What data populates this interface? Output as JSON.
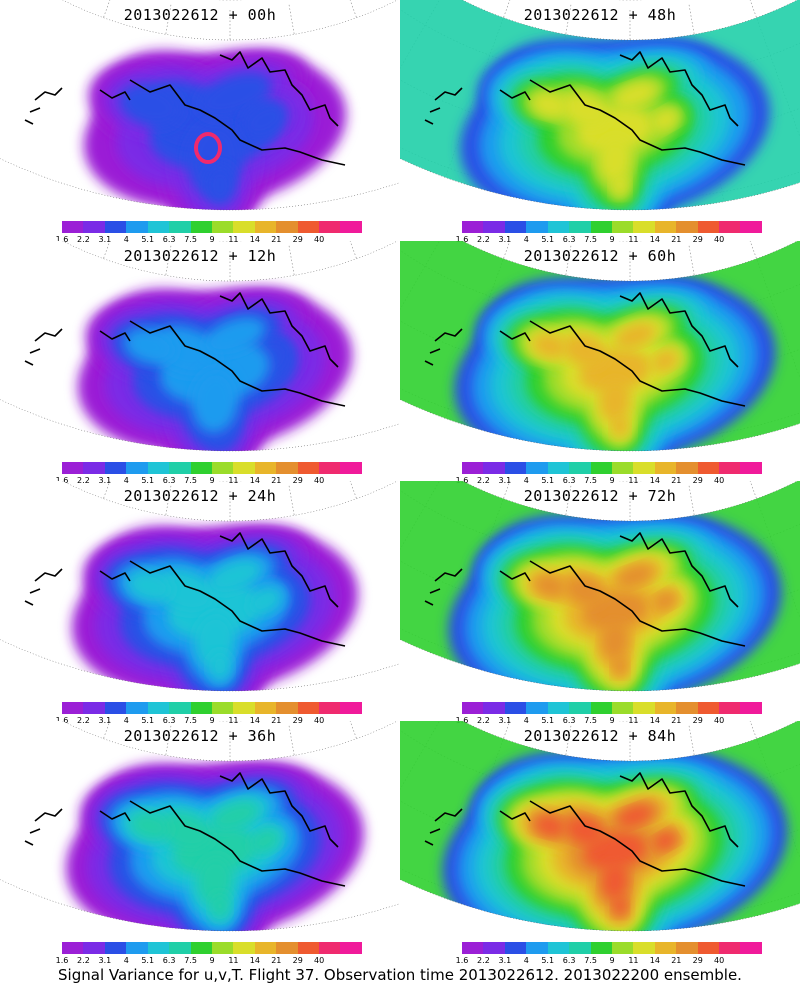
{
  "panels": [
    {
      "title": "2013022612 + 00h",
      "level": 0
    },
    {
      "title": "2013022612 + 48h",
      "level": 4
    },
    {
      "title": "2013022612 + 12h",
      "level": 1
    },
    {
      "title": "2013022612 + 60h",
      "level": 5
    },
    {
      "title": "2013022612 + 24h",
      "level": 2
    },
    {
      "title": "2013022612 + 72h",
      "level": 6
    },
    {
      "title": "2013022612 + 36h",
      "level": 3
    },
    {
      "title": "2013022612 + 84h",
      "level": 7
    }
  ],
  "colorbar": {
    "labels": [
      "1.6",
      "2.2",
      "3.1",
      "4",
      "5.1",
      "6.3",
      "7.5",
      "9",
      "11",
      "14",
      "21",
      "29",
      "40"
    ],
    "colors": [
      "#9b1fd6",
      "#7a2be6",
      "#2a4fe6",
      "#1e9bef",
      "#1fc4d6",
      "#20cfa8",
      "#2fd02f",
      "#9bdc2a",
      "#d9de2a",
      "#e8b52a",
      "#e48f2e",
      "#ef5a30",
      "#ef2a6e",
      "#f01a9a"
    ]
  },
  "caption": "Signal Variance for u,v,T. Flight 37. Observation time 2013022612. 2013022200 ensemble.",
  "icons": [
    "map-domain-icon",
    "coastline-icon",
    "graticule-icon"
  ]
}
